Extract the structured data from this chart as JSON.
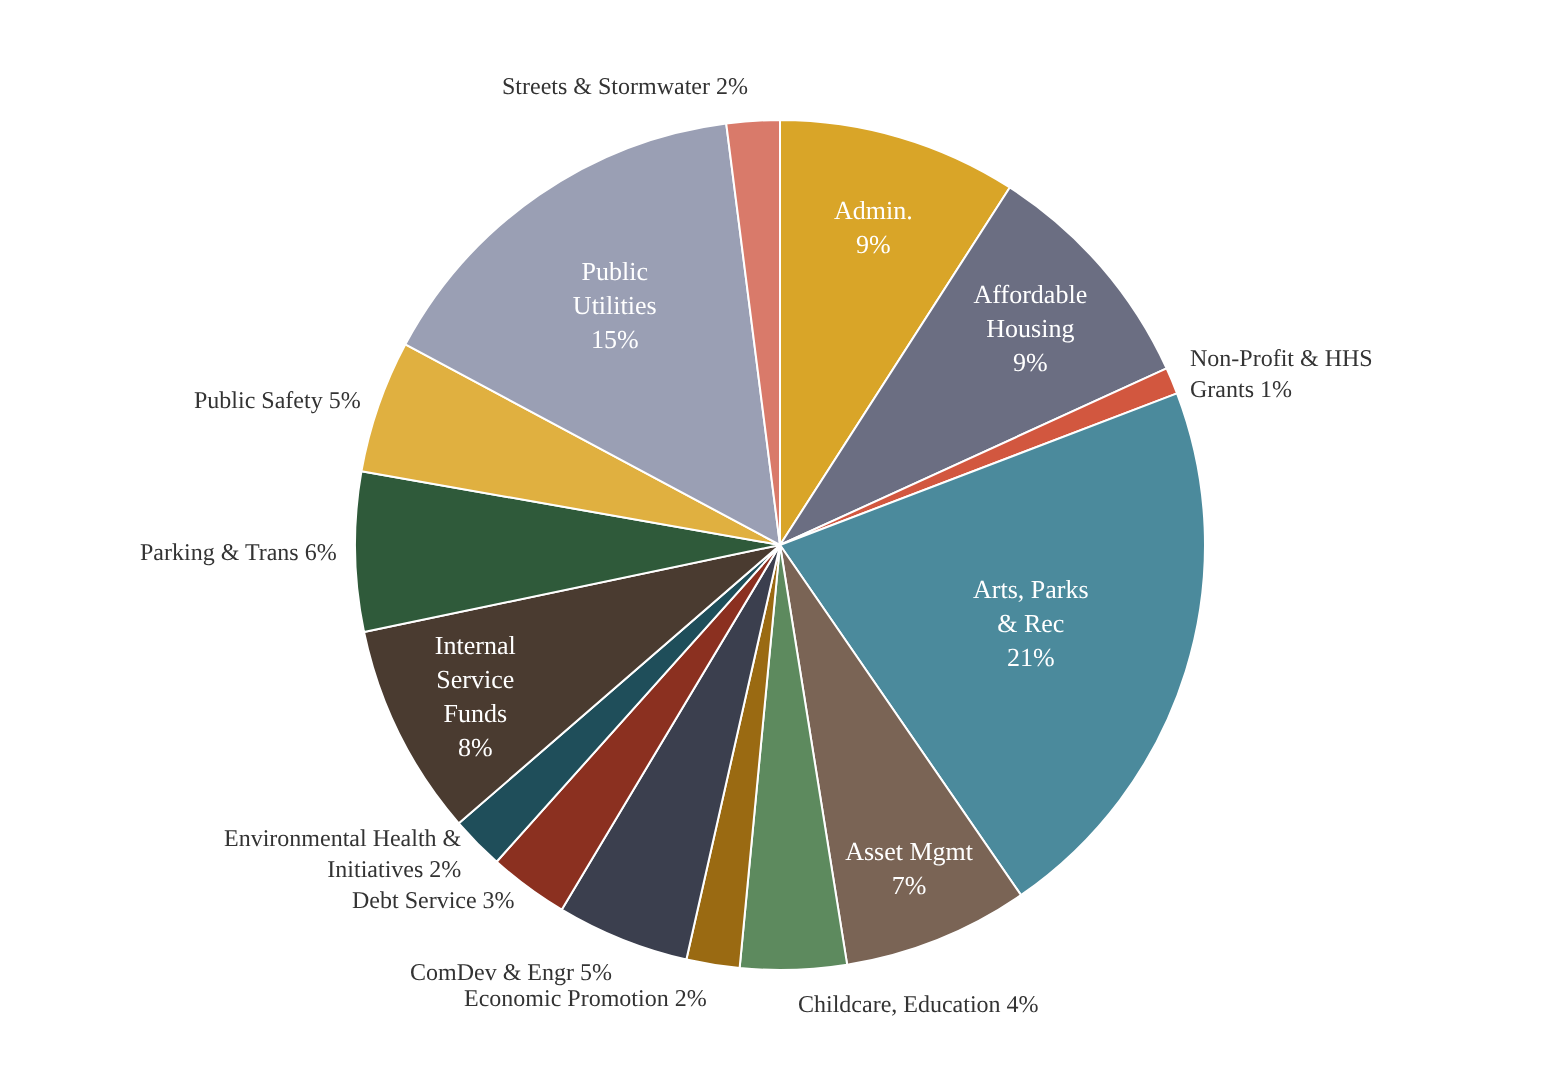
{
  "chart_data": {
    "type": "pie",
    "categories": [
      "Admin.",
      "Affordable Housing",
      "Non-Profit & HHS Grants",
      "Arts, Parks & Rec",
      "Asset Mgmt",
      "Childcare, Education",
      "Economic Promotion",
      "ComDev & Engr",
      "Debt Service",
      "Environmental Health & Initiatives",
      "Internal Service Funds",
      "Parking & Trans",
      "Public Safety",
      "Public Utilities",
      "Streets & Stormwater"
    ],
    "values": [
      9,
      9,
      1,
      21,
      7,
      4,
      2,
      5,
      3,
      2,
      8,
      6,
      5,
      15,
      2
    ],
    "value_labels": [
      "9%",
      "9%",
      "1%",
      "21%",
      "7%",
      "4%",
      "2%",
      "5%",
      "3%",
      "2%",
      "8%",
      "6%",
      "5%",
      "15%",
      "2%"
    ],
    "colors": [
      "#d9a528",
      "#6b6e82",
      "#d2573f",
      "#4b8a9c",
      "#7a6455",
      "#5d8a5e",
      "#9a6a12",
      "#3b3f4e",
      "#8b3020",
      "#1f4e5a",
      "#4a3b30",
      "#2f5a3a",
      "#e0b040",
      "#9a9fb4",
      "#d97a6a"
    ],
    "legend": false
  }
}
